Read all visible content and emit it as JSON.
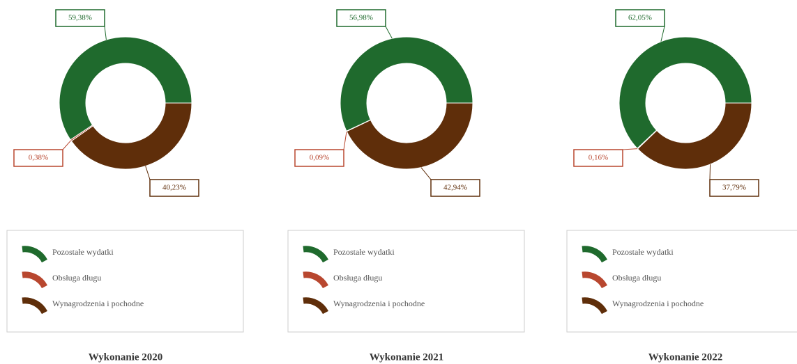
{
  "chart_data": [
    {
      "type": "pie",
      "title": "Wykonanie 2020",
      "categories": [
        "Pozostałe wydatki",
        "Obsługa długu",
        "Wynagrodzenia i pochodne"
      ],
      "values": [
        59.38,
        0.38,
        40.23
      ],
      "value_labels": [
        "59,38%",
        "0,38%",
        "40,23%"
      ],
      "colors": [
        "#1f6a2d",
        "#b8472f",
        "#5f2e0a"
      ]
    },
    {
      "type": "pie",
      "title": "Wykonanie 2021",
      "categories": [
        "Pozostałe wydatki",
        "Obsługa długu",
        "Wynagrodzenia i pochodne"
      ],
      "values": [
        56.98,
        0.09,
        42.94
      ],
      "value_labels": [
        "56,98%",
        "0,09%",
        "42,94%"
      ],
      "colors": [
        "#1f6a2d",
        "#b8472f",
        "#5f2e0a"
      ]
    },
    {
      "type": "pie",
      "title": "Wykonanie 2022",
      "categories": [
        "Pozostałe wydatki",
        "Obsługa długu",
        "Wynagrodzenia i pochodne"
      ],
      "values": [
        62.05,
        0.16,
        37.79
      ],
      "value_labels": [
        "62,05%",
        "0,16%",
        "37,79%"
      ],
      "colors": [
        "#1f6a2d",
        "#b8472f",
        "#5f2e0a"
      ]
    }
  ]
}
